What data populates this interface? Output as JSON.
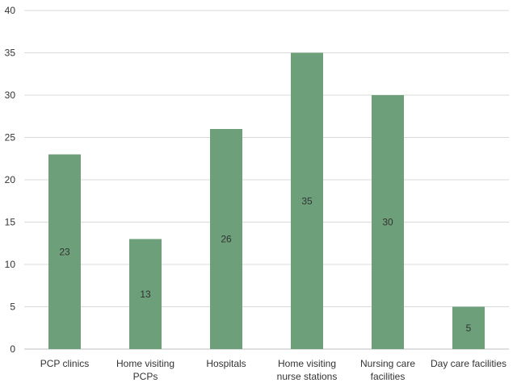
{
  "chart_data": {
    "type": "bar",
    "title": "",
    "xlabel": "",
    "ylabel": "",
    "categories": [
      [
        "PCP clinics"
      ],
      [
        "Home visiting",
        "PCPs"
      ],
      [
        "Hospitals"
      ],
      [
        "Home visiting",
        "nurse stations"
      ],
      [
        "Nursing care",
        "facilities"
      ],
      [
        "Day care facilities"
      ]
    ],
    "values": [
      23,
      13,
      26,
      35,
      30,
      5
    ],
    "data_labels": [
      "23",
      "13",
      "26",
      "35",
      "30",
      "5"
    ],
    "ylim": [
      0,
      40
    ],
    "yticks": [
      0,
      5,
      10,
      15,
      20,
      25,
      30,
      35,
      40
    ],
    "grid": true,
    "legend": "none",
    "bar_color": "#6c9f7a",
    "label_position": "center"
  }
}
